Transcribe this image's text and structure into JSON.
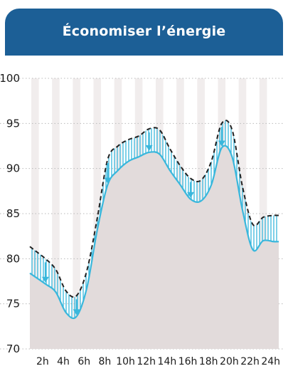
{
  "header": {
    "title": "Économiser l’énergie"
  },
  "colors": {
    "header_bg": "#1c5f96",
    "stripe": "#f1eded",
    "area_fill": "#e2dbdb",
    "lower_line": "#39b7dc",
    "upper_line": "#222222",
    "hatch": "#39b7dc",
    "grid": "#b9b9b9"
  },
  "chart_data": {
    "type": "area",
    "xlabel": "",
    "ylabel": "",
    "ylim": [
      70,
      100
    ],
    "y_ticks": [
      70,
      75,
      80,
      85,
      90,
      95,
      100
    ],
    "x": [
      1,
      2,
      3,
      4,
      5,
      6,
      7,
      8,
      9,
      10,
      11,
      12,
      13,
      14,
      15,
      16,
      17,
      18,
      19,
      20,
      21,
      22,
      23,
      24
    ],
    "x_tick_labels": [
      "2h",
      "4h",
      "6h",
      "8h",
      "10h",
      "12h",
      "14h",
      "16h",
      "18h",
      "20h",
      "22h",
      "24h"
    ],
    "x_tick_positions": [
      2,
      4,
      6,
      8,
      10,
      12,
      14,
      16,
      18,
      20,
      22,
      24
    ],
    "grid": true,
    "grid_style": "dotted horizontal",
    "series": [
      {
        "style": "dashed",
        "color": "#222222",
        "values": [
          80.9,
          80.0,
          78.8,
          76.4,
          75.9,
          78.7,
          84.5,
          91.0,
          92.5,
          93.2,
          93.6,
          94.4,
          94.3,
          92.2,
          90.3,
          88.9,
          88.7,
          90.8,
          95.0,
          94.3,
          88.0,
          83.8,
          84.6,
          84.8
        ]
      },
      {
        "style": "solid",
        "color": "#39b7dc",
        "fill": "#e2dbdb",
        "values": [
          78.0,
          77.2,
          76.3,
          74.0,
          73.6,
          76.8,
          83.2,
          88.2,
          89.8,
          90.8,
          91.3,
          91.8,
          91.6,
          89.8,
          88.2,
          86.6,
          86.4,
          88.2,
          92.3,
          91.3,
          85.4,
          81.0,
          82.0,
          81.9
        ]
      }
    ],
    "arrows_at_x": [
      2,
      5,
      8,
      12,
      16,
      19
    ]
  }
}
